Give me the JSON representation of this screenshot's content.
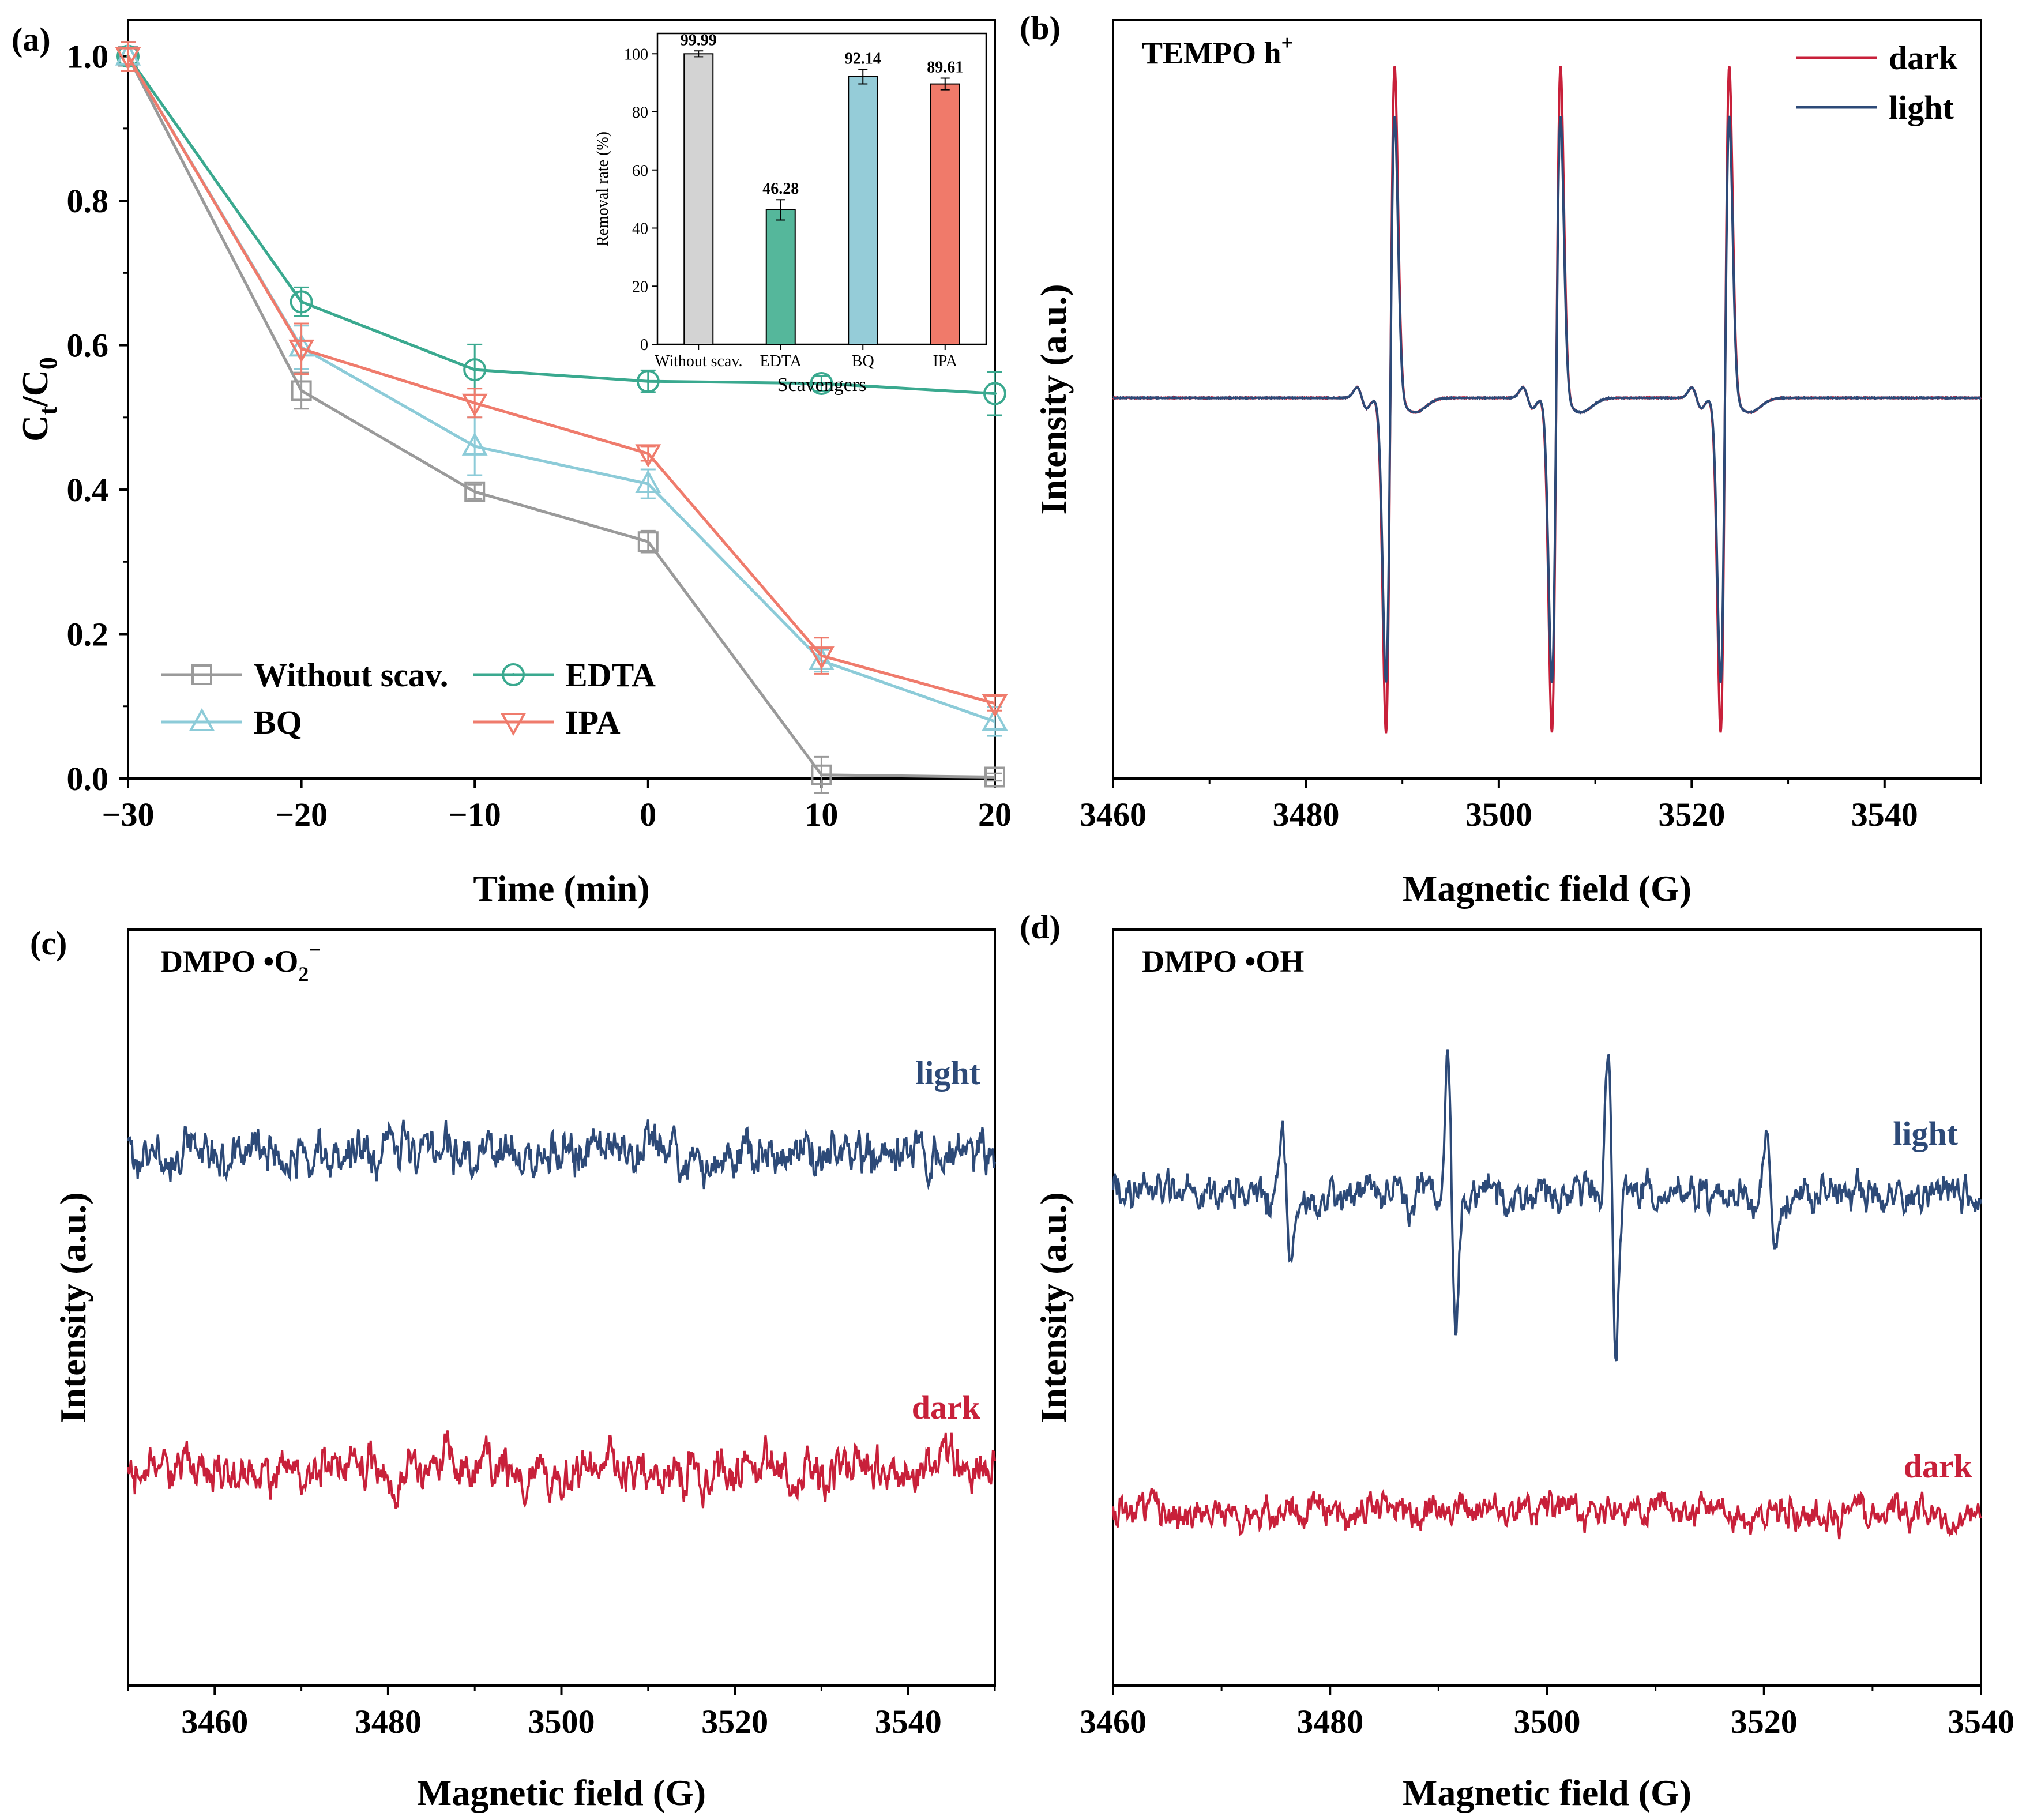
{
  "colors": {
    "gray": "#9a9a9a",
    "teal": "#3aa98f",
    "lightblue": "#8ccbd8",
    "salmon": "#ef7b6c",
    "dark_red": "#c8203a",
    "navy": "#2d4a78",
    "bar_gray": "#d3d3d3",
    "bar_teal": "#55b79b",
    "bar_blue": "#95ccd8",
    "bar_salmon": "#f07a6a"
  },
  "panels": {
    "a": {
      "label": "(a)"
    },
    "b": {
      "label": "(b)",
      "annotation": "TEMPO h",
      "annotation_sup": "+"
    },
    "c": {
      "label": "(c)",
      "annotation": "DMPO •O",
      "annotation_sub": "2",
      "annotation_sup": "−"
    },
    "d": {
      "label": "(d)",
      "annotation": "DMPO •OH"
    }
  },
  "chart_data": [
    {
      "id": "a",
      "type": "line",
      "title": "",
      "xlabel": "Time (min)",
      "ylabel": "C",
      "ylabel_sub_t": "t",
      "ylabel_mid": "/C",
      "ylabel_sub_0": "0",
      "x": [
        -30,
        -20,
        -10,
        0,
        10,
        20
      ],
      "xlim": [
        -30,
        20
      ],
      "ylim": [
        0,
        1.05
      ],
      "xticks": [
        "−30",
        "−20",
        "−10",
        "0",
        "10",
        "20"
      ],
      "yticks": [
        "0.0",
        "0.2",
        "0.4",
        "0.6",
        "0.8",
        "1.0"
      ],
      "legend": "bottom-left",
      "series": [
        {
          "name": "Without scav.",
          "marker": "square",
          "color": "#9a9a9a",
          "values": [
            1.0,
            0.537,
            0.397,
            0.328,
            0.005,
            0.002
          ],
          "errors": [
            0.02,
            0.025,
            0.01,
            0.015,
            0.025,
            0.005
          ]
        },
        {
          "name": "EDTA",
          "marker": "circle",
          "color": "#3aa98f",
          "values": [
            1.0,
            0.66,
            0.566,
            0.55,
            0.547,
            0.533
          ],
          "errors": [
            0.02,
            0.02,
            0.035,
            0.015,
            0.01,
            0.03
          ]
        },
        {
          "name": "BQ",
          "marker": "triangle-up",
          "color": "#8ccbd8",
          "values": [
            1.0,
            0.597,
            0.46,
            0.408,
            0.163,
            0.079
          ],
          "errors": [
            0.02,
            0.03,
            0.04,
            0.02,
            0.015,
            0.02
          ]
        },
        {
          "name": "IPA",
          "marker": "triangle-down",
          "color": "#ef7b6c",
          "values": [
            1.0,
            0.595,
            0.52,
            0.45,
            0.17,
            0.104
          ],
          "errors": [
            0.02,
            0.035,
            0.02,
            0.01,
            0.025,
            0.01
          ]
        }
      ]
    },
    {
      "id": "a-inset",
      "type": "bar",
      "xlabel": "Scavengers",
      "ylabel": "Removal rate (%)",
      "categories": [
        "Without scav.",
        "EDTA",
        "BQ",
        "IPA"
      ],
      "values": [
        99.99,
        46.28,
        92.14,
        89.61
      ],
      "value_labels": [
        "99.99",
        "46.28",
        "92.14",
        "89.61"
      ],
      "errors": [
        1.0,
        3.5,
        2.5,
        2.0
      ],
      "ylim": [
        0,
        107
      ],
      "yticks": [
        "0",
        "20",
        "40",
        "60",
        "80",
        "100"
      ]
    },
    {
      "id": "b",
      "type": "line",
      "xlabel": "Magnetic field (G)",
      "ylabel": "Intensity (a.u.)",
      "xlim": [
        3460,
        3550
      ],
      "xticks": [
        "3460",
        "3480",
        "3500",
        "3520",
        "3540"
      ],
      "legend": "top-right",
      "series": [
        {
          "name": "dark",
          "color": "#c8203a",
          "peaks": [
            3488.3,
            3505.5,
            3523.0
          ],
          "amplitude": 1.0
        },
        {
          "name": "light",
          "color": "#2d4a78",
          "peaks": [
            3488.3,
            3505.5,
            3523.0
          ],
          "amplitude": 0.85
        }
      ]
    },
    {
      "id": "c",
      "type": "line",
      "xlabel": "Magnetic field (G)",
      "ylabel": "Intensity (a.u.)",
      "xlim": [
        3450,
        3550
      ],
      "xticks": [
        "3460",
        "3480",
        "3500",
        "3520",
        "3540"
      ],
      "series": [
        {
          "name": "light",
          "color": "#2d4a78",
          "peaks": []
        },
        {
          "name": "dark",
          "color": "#c8203a",
          "peaks": []
        }
      ]
    },
    {
      "id": "d",
      "type": "line",
      "xlabel": "Magnetic field (G)",
      "ylabel": "Intensity (a.u.)",
      "xlim": [
        3460,
        3540
      ],
      "xticks": [
        "3460",
        "3480",
        "3500",
        "3520",
        "3540"
      ],
      "series": [
        {
          "name": "light",
          "color": "#2d4a78",
          "peaks": [
            3476.0,
            3491.2,
            3506.0,
            3520.6
          ]
        },
        {
          "name": "dark",
          "color": "#c8203a",
          "peaks": []
        }
      ]
    }
  ]
}
